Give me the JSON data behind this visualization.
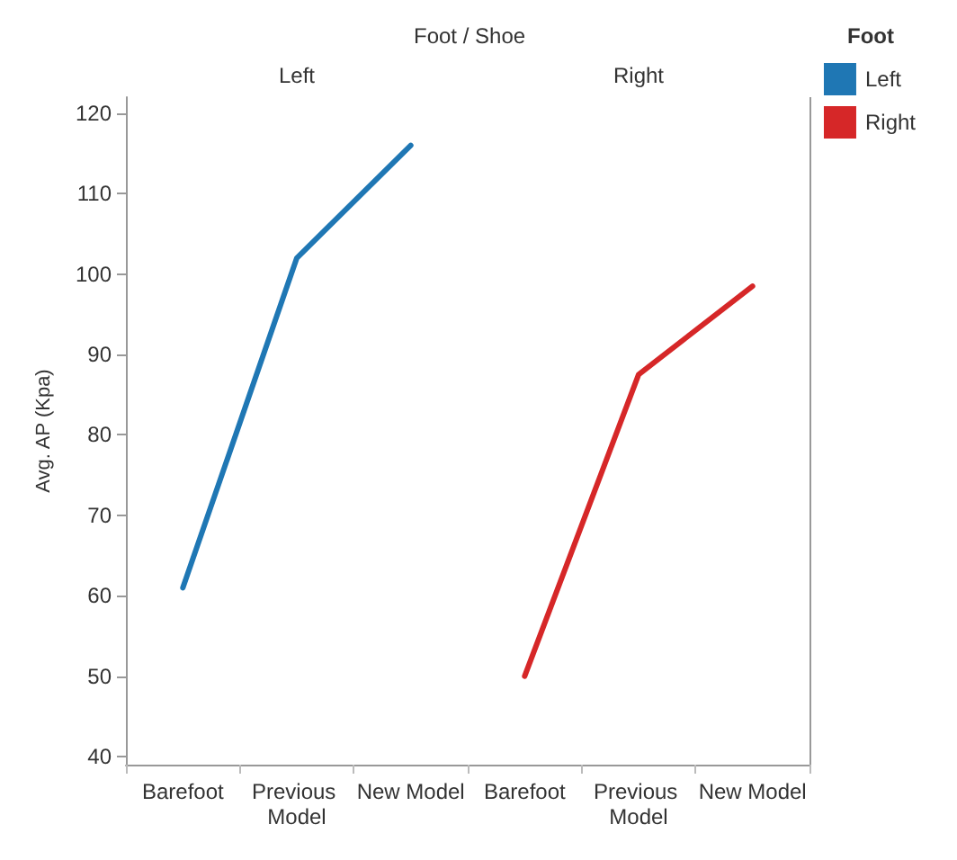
{
  "chart_data": {
    "type": "line",
    "title": "Foot / Shoe",
    "ylabel": "Avg. AP (Kpa)",
    "legend_title": "Foot",
    "annotations": [
      "Left",
      "Right"
    ],
    "categories": [
      "Barefoot",
      "Previous Model",
      "New Model",
      "Barefoot",
      "Previous Model",
      "New Model"
    ],
    "series": [
      {
        "name": "Left",
        "color": "#1f77b4",
        "values": [
          61,
          102,
          116,
          null,
          null,
          null
        ]
      },
      {
        "name": "Right",
        "color": "#d62728",
        "values": [
          null,
          null,
          null,
          50,
          87.5,
          98.5
        ]
      }
    ],
    "ylim": [
      39,
      122
    ],
    "yticks": [
      40,
      50,
      60,
      70,
      80,
      90,
      100,
      110,
      120
    ],
    "grid": false,
    "legend": "top right",
    "marker": "none",
    "line_style": "solid"
  }
}
